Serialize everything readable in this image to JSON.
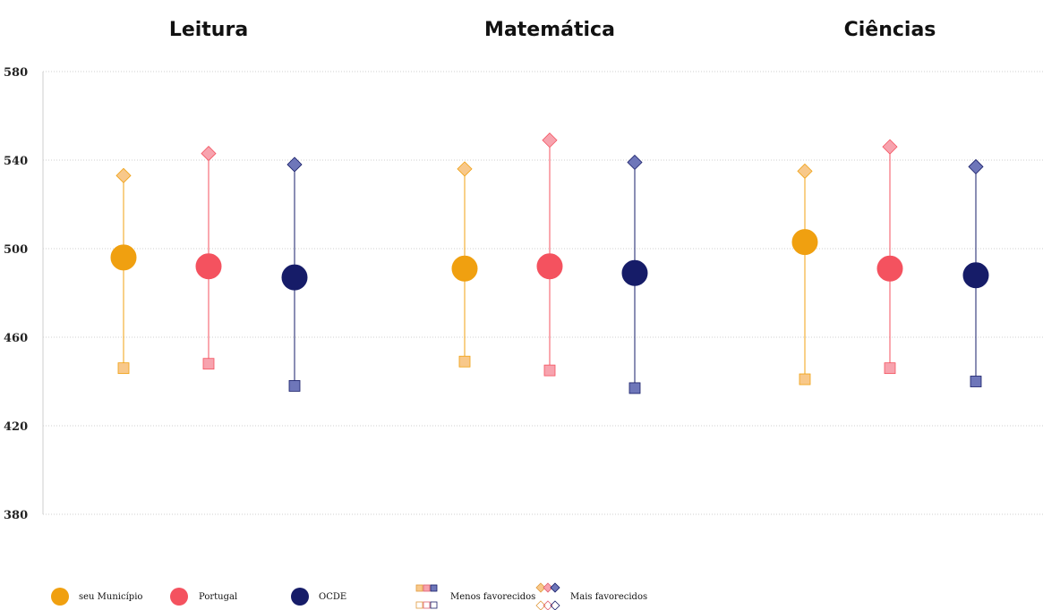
{
  "chart_data": {
    "type": "scatter",
    "panels": [
      "Leitura",
      "Matemática",
      "Ciências"
    ],
    "ylim": [
      380,
      580
    ],
    "yticks": [
      380,
      420,
      460,
      500,
      540,
      580
    ],
    "grid": true,
    "legend_position": "bottom",
    "series": [
      {
        "name": "seu Município",
        "color": "#F0A010",
        "light_color": "#F8C88A",
        "mean": [
          496,
          491,
          503
        ],
        "menos_favorecidos": [
          446,
          449,
          441
        ],
        "mais_favorecidos": [
          533,
          536,
          535
        ]
      },
      {
        "name": "Portugal",
        "color": "#F4525F",
        "light_color": "#F7A3AE",
        "mean": [
          492,
          492,
          491
        ],
        "menos_favorecidos": [
          448,
          445,
          446
        ],
        "mais_favorecidos": [
          543,
          549,
          546
        ]
      },
      {
        "name": "OCDE",
        "color": "#161C68",
        "light_color": "#6E76B9",
        "mean": [
          487,
          489,
          488
        ],
        "menos_favorecidos": [
          438,
          437,
          440
        ],
        "mais_favorecidos": [
          538,
          539,
          537
        ]
      }
    ],
    "legend": {
      "series_labels": [
        "seu Município",
        "Portugal",
        "OCDE"
      ],
      "menos_label": "Menos favorecidos",
      "mais_label": "Mais favorecidos"
    }
  }
}
